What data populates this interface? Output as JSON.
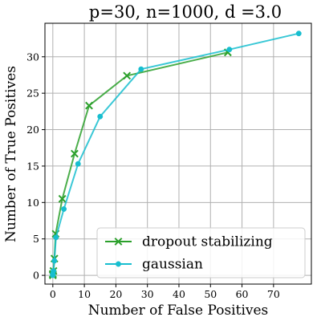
{
  "chart_data": {
    "type": "line",
    "title": "p=30, n=1000, d =3.0",
    "xlabel": "Number of False Positives",
    "ylabel": "Number of True Positives",
    "xlim": [
      -2.5,
      82
    ],
    "ylim": [
      -1.2,
      34.6
    ],
    "xticks": [
      0,
      10,
      20,
      30,
      40,
      50,
      60,
      70
    ],
    "yticks": [
      0,
      5,
      10,
      15,
      20,
      25,
      30
    ],
    "grid": true,
    "legend_position": "lower-right",
    "series": [
      {
        "name": "dropout stabilizing",
        "color": "#2ca02c",
        "marker": "x",
        "x": [
          0,
          0,
          0,
          0.2,
          0.5,
          0.9,
          3.0,
          6.9,
          11.5,
          23.5,
          55.5
        ],
        "y": [
          0,
          0.1,
          0.2,
          0.6,
          2.3,
          5.7,
          10.5,
          16.7,
          23.3,
          27.4,
          30.6
        ]
      },
      {
        "name": "gaussian",
        "color": "#17becf",
        "marker": "o",
        "x": [
          0,
          0,
          0,
          0.2,
          0.5,
          1.0,
          3.5,
          8.0,
          15.0,
          28.0,
          56.0,
          78.0
        ],
        "y": [
          0,
          0.1,
          0.2,
          0.6,
          2.0,
          5.2,
          9.1,
          15.3,
          21.8,
          28.3,
          31.0,
          33.2
        ]
      }
    ]
  }
}
